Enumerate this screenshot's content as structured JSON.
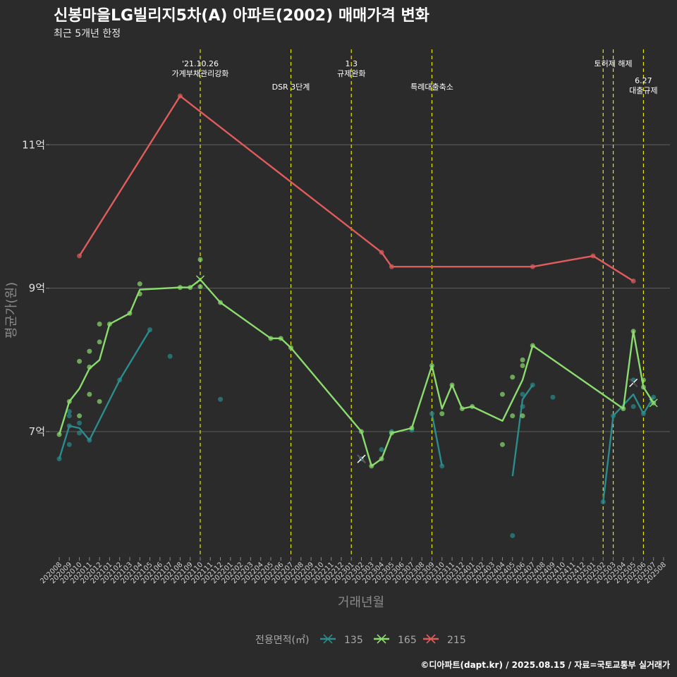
{
  "chart_data": {
    "type": "line",
    "title": "신봉마을LG빌리지5차(A) 아파트(2002) 매매가격 변화",
    "subtitle": "최근 5개년 한정",
    "xlabel": "거래년월",
    "ylabel": "평균가(원)",
    "caption": "©디아파트(dapt.kr) / 2025.08.15 / 자료=국토교통부 실거래가",
    "legend_title": "전용면적(㎡)",
    "legend_position": "bottom",
    "grid": true,
    "y_unit": "억",
    "ylim": [
      5.25,
      12.35
    ],
    "yticks": [
      {
        "value": 7,
        "label": "7억"
      },
      {
        "value": 9,
        "label": "9억"
      },
      {
        "value": 11,
        "label": "11억"
      }
    ],
    "categories": [
      "202008",
      "202009",
      "202010",
      "202011",
      "202012",
      "202101",
      "202102",
      "202103",
      "202104",
      "202105",
      "202106",
      "202107",
      "202108",
      "202109",
      "202110",
      "202111",
      "202112",
      "202201",
      "202202",
      "202203",
      "202204",
      "202205",
      "202206",
      "202207",
      "202208",
      "202209",
      "202210",
      "202211",
      "202212",
      "202301",
      "202302",
      "202303",
      "202304",
      "202305",
      "202306",
      "202307",
      "202308",
      "202309",
      "202310",
      "202311",
      "202312",
      "202401",
      "202402",
      "202403",
      "202404",
      "202405",
      "202406",
      "202407",
      "202408",
      "202409",
      "202410",
      "202411",
      "202412",
      "202501",
      "202502",
      "202503",
      "202504",
      "202505",
      "202506",
      "202507",
      "202508"
    ],
    "events": [
      {
        "at": "202110",
        "lines": [
          "'21.10.26",
          "가계부채관리강화"
        ],
        "row": 0
      },
      {
        "at": "202207",
        "lines": [
          "DSR 3단계"
        ],
        "row": 1
      },
      {
        "at": "202301",
        "lines": [
          "1.3",
          "규제완화"
        ],
        "row": 0
      },
      {
        "at": "202309",
        "lines": [
          "특례대출축소"
        ],
        "row": 1
      },
      {
        "at": "202502",
        "lines": [],
        "row": 0
      },
      {
        "at": "202503",
        "lines": [
          "토허제 해제"
        ],
        "row": 0
      },
      {
        "at": "202506",
        "lines": [
          "6.27",
          "대출규제"
        ],
        "row": 2
      }
    ],
    "series": [
      {
        "name": "135",
        "color": "#2a8c8c",
        "line": [
          [
            [
              "202008",
              6.62
            ],
            [
              "202009",
              7.08
            ],
            [
              "202010",
              7.05
            ],
            [
              "202011",
              6.88
            ],
            [
              "202102",
              7.72
            ],
            [
              "202105",
              8.42
            ]
          ],
          [
            [
              "202309",
              7.25
            ],
            [
              "202310",
              6.52
            ]
          ],
          [
            [
              "202405",
              6.38
            ],
            [
              "202406",
              7.45
            ],
            [
              "202407",
              7.65
            ]
          ],
          [
            [
              "202502",
              6.02
            ],
            [
              "202503",
              7.22
            ],
            [
              "202505",
              7.52
            ],
            [
              "202506",
              7.25
            ],
            [
              "202507",
              7.48
            ]
          ]
        ],
        "points": [
          [
            "202008",
            6.62
          ],
          [
            "202009",
            7.08
          ],
          [
            "202009",
            6.82
          ],
          [
            "202009",
            7.22
          ],
          [
            "202009",
            7.28
          ],
          [
            "202010",
            7.12
          ],
          [
            "202010",
            6.98
          ],
          [
            "202011",
            6.88
          ],
          [
            "202102",
            7.72
          ],
          [
            "202105",
            8.42
          ],
          [
            "202107",
            8.05
          ],
          [
            "202112",
            7.45
          ],
          [
            "202302",
            6.62
          ],
          [
            "202304",
            6.75
          ],
          [
            "202305",
            7.0
          ],
          [
            "202307",
            7.02
          ],
          [
            "202309",
            7.25
          ],
          [
            "202310",
            6.52
          ],
          [
            "202405",
            5.55
          ],
          [
            "202406",
            7.52
          ],
          [
            "202406",
            7.35
          ],
          [
            "202407",
            7.65
          ],
          [
            "202409",
            7.48
          ],
          [
            "202502",
            6.02
          ],
          [
            "202503",
            7.22
          ],
          [
            "202505",
            7.72
          ],
          [
            "202505",
            7.35
          ],
          [
            "202506",
            7.25
          ],
          [
            "202507",
            7.48
          ]
        ],
        "cross": [
          [
            "202302",
            6.62
          ],
          [
            "202505",
            7.68
          ]
        ]
      },
      {
        "name": "165",
        "color": "#8bdc6e",
        "line": [
          [
            [
              "202008",
              6.96
            ],
            [
              "202009",
              7.42
            ],
            [
              "202010",
              7.6
            ],
            [
              "202011",
              7.88
            ],
            [
              "202012",
              8.0
            ],
            [
              "202101",
              8.5
            ],
            [
              "202103",
              8.65
            ],
            [
              "202104",
              8.98
            ],
            [
              "202108",
              9.01
            ],
            [
              "202109",
              9.01
            ],
            [
              "202110",
              9.12
            ],
            [
              "202112",
              8.8
            ],
            [
              "202205",
              8.3
            ],
            [
              "202206",
              8.3
            ],
            [
              "202207",
              8.17
            ],
            [
              "202302",
              7.0
            ],
            [
              "202303",
              6.52
            ],
            [
              "202304",
              6.62
            ],
            [
              "202305",
              6.98
            ],
            [
              "202307",
              7.05
            ],
            [
              "202309",
              7.92
            ],
            [
              "202310",
              7.32
            ],
            [
              "202311",
              7.65
            ],
            [
              "202312",
              7.32
            ],
            [
              "202401",
              7.35
            ],
            [
              "202404",
              7.15
            ],
            [
              "202406",
              7.72
            ],
            [
              "202407",
              8.2
            ],
            [
              "202504",
              7.32
            ],
            [
              "202505",
              8.4
            ],
            [
              "202506",
              7.62
            ],
            [
              "202507",
              7.4
            ]
          ]
        ],
        "points": [
          [
            "202008",
            6.96
          ],
          [
            "202009",
            7.42
          ],
          [
            "202010",
            7.98
          ],
          [
            "202010",
            7.22
          ],
          [
            "202011",
            8.12
          ],
          [
            "202011",
            7.9
          ],
          [
            "202011",
            7.52
          ],
          [
            "202012",
            8.5
          ],
          [
            "202012",
            8.25
          ],
          [
            "202012",
            7.42
          ],
          [
            "202101",
            8.5
          ],
          [
            "202103",
            8.65
          ],
          [
            "202104",
            9.06
          ],
          [
            "202104",
            8.92
          ],
          [
            "202108",
            9.01
          ],
          [
            "202109",
            9.01
          ],
          [
            "202110",
            9.4
          ],
          [
            "202110",
            9.02
          ],
          [
            "202112",
            8.8
          ],
          [
            "202205",
            8.3
          ],
          [
            "202206",
            8.3
          ],
          [
            "202207",
            8.17
          ],
          [
            "202302",
            7.0
          ],
          [
            "202303",
            6.52
          ],
          [
            "202304",
            6.62
          ],
          [
            "202305",
            6.98
          ],
          [
            "202307",
            7.05
          ],
          [
            "202309",
            7.92
          ],
          [
            "202310",
            7.25
          ],
          [
            "202311",
            7.65
          ],
          [
            "202312",
            7.32
          ],
          [
            "202401",
            7.35
          ],
          [
            "202404",
            7.52
          ],
          [
            "202404",
            6.82
          ],
          [
            "202405",
            7.76
          ],
          [
            "202405",
            7.22
          ],
          [
            "202406",
            8.0
          ],
          [
            "202406",
            7.92
          ],
          [
            "202406",
            7.22
          ],
          [
            "202407",
            8.2
          ],
          [
            "202504",
            7.32
          ],
          [
            "202505",
            8.4
          ],
          [
            "202506",
            7.72
          ],
          [
            "202506",
            7.62
          ],
          [
            "202507",
            7.4
          ]
        ],
        "cross": [
          [
            "202110",
            9.12
          ],
          [
            "202507",
            7.4
          ]
        ]
      },
      {
        "name": "215",
        "color": "#e05c5c",
        "line": [
          [
            [
              "202010",
              9.45
            ],
            [
              "202108",
              11.68
            ],
            [
              "202304",
              9.5
            ],
            [
              "202305",
              9.3
            ],
            [
              "202407",
              9.3
            ],
            [
              "202501",
              9.45
            ],
            [
              "202505",
              9.1
            ]
          ]
        ],
        "points": [
          [
            "202010",
            9.45
          ],
          [
            "202108",
            11.68
          ],
          [
            "202304",
            9.5
          ],
          [
            "202305",
            9.3
          ],
          [
            "202407",
            9.3
          ],
          [
            "202501",
            9.45
          ],
          [
            "202505",
            9.1
          ]
        ],
        "cross": []
      }
    ]
  }
}
